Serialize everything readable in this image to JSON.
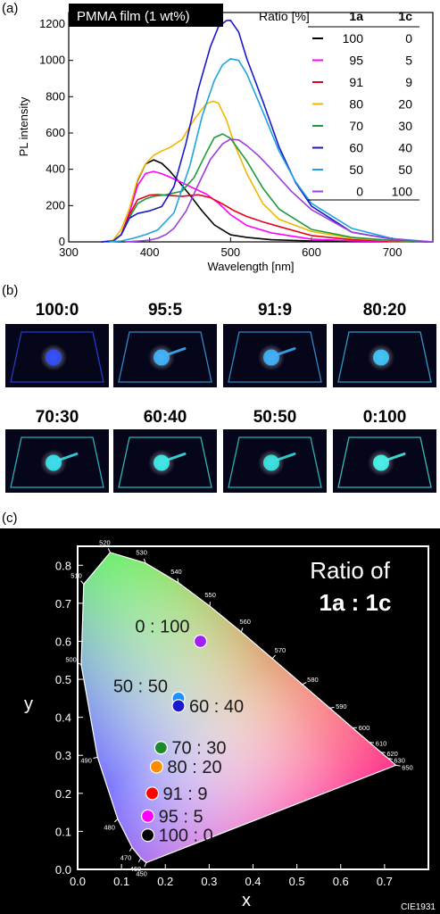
{
  "panels": {
    "a": "(a)",
    "b": "(b)",
    "c": "(c)"
  },
  "chart_data": [
    {
      "type": "line",
      "badge": "PMMA film (1 wt%)",
      "xlabel": "Wavelength [nm]",
      "ylabel": "PL intensity",
      "xlim": [
        300,
        750
      ],
      "ylim": [
        0,
        1250
      ],
      "xticks": [
        300,
        400,
        500,
        600,
        700
      ],
      "yticks": [
        0,
        200,
        400,
        600,
        800,
        1000,
        1200
      ],
      "legend": {
        "header": [
          "Ratio [%]",
          "1a",
          "1c"
        ],
        "placement": "top-right"
      },
      "series": [
        {
          "ratio_1a": "100",
          "ratio_1c": "0",
          "color": "#000000",
          "x": [
            340,
            355,
            365,
            375,
            385,
            395,
            405,
            415,
            425,
            435,
            450,
            465,
            480,
            500,
            520,
            550,
            600,
            650,
            700,
            750
          ],
          "y": [
            0,
            5,
            40,
            160,
            330,
            420,
            450,
            440,
            400,
            340,
            250,
            160,
            90,
            45,
            25,
            12,
            5,
            3,
            2,
            0
          ]
        },
        {
          "ratio_1a": "95",
          "ratio_1c": "5",
          "color": "#ff00ff",
          "x": [
            340,
            355,
            365,
            375,
            385,
            395,
            405,
            415,
            425,
            440,
            455,
            470,
            485,
            500,
            520,
            550,
            600,
            650,
            700,
            750
          ],
          "y": [
            0,
            5,
            40,
            150,
            300,
            375,
            395,
            385,
            360,
            320,
            285,
            260,
            220,
            160,
            95,
            45,
            15,
            6,
            2,
            0
          ]
        },
        {
          "ratio_1a": "91",
          "ratio_1c": "9",
          "color": "#e8001c",
          "x": [
            340,
            355,
            365,
            375,
            385,
            400,
            410,
            420,
            440,
            460,
            475,
            490,
            505,
            520,
            540,
            560,
            600,
            650,
            700,
            750
          ],
          "y": [
            0,
            5,
            40,
            140,
            230,
            265,
            270,
            260,
            245,
            250,
            240,
            215,
            180,
            145,
            105,
            75,
            35,
            12,
            4,
            0
          ]
        },
        {
          "ratio_1a": "80",
          "ratio_1c": "20",
          "color": "#f2b600",
          "x": [
            340,
            355,
            365,
            375,
            385,
            395,
            405,
            415,
            425,
            440,
            455,
            470,
            478,
            485,
            495,
            505,
            520,
            540,
            560,
            600,
            650,
            700,
            750
          ],
          "y": [
            0,
            10,
            60,
            180,
            350,
            440,
            480,
            495,
            510,
            560,
            680,
            770,
            780,
            760,
            660,
            530,
            380,
            220,
            130,
            55,
            20,
            7,
            0
          ]
        },
        {
          "ratio_1a": "70",
          "ratio_1c": "30",
          "color": "#1e9a3c",
          "x": [
            340,
            355,
            365,
            375,
            385,
            395,
            405,
            420,
            440,
            455,
            470,
            480,
            490,
            500,
            520,
            540,
            560,
            600,
            650,
            700,
            750
          ],
          "y": [
            0,
            5,
            40,
            140,
            220,
            240,
            245,
            250,
            275,
            360,
            500,
            580,
            590,
            560,
            440,
            300,
            190,
            75,
            25,
            8,
            0
          ]
        },
        {
          "ratio_1a": "60",
          "ratio_1c": "40",
          "color": "#1a1acc",
          "x": [
            340,
            355,
            365,
            375,
            385,
            400,
            415,
            430,
            445,
            460,
            475,
            485,
            495,
            500,
            510,
            520,
            540,
            560,
            580,
            600,
            650,
            700,
            750
          ],
          "y": [
            0,
            5,
            40,
            140,
            160,
            165,
            185,
            300,
            550,
            850,
            1080,
            1180,
            1210,
            1215,
            1160,
            1020,
            780,
            520,
            320,
            190,
            55,
            15,
            0
          ]
        },
        {
          "ratio_1a": "50",
          "ratio_1c": "50",
          "color": "#1fa3e0",
          "x": [
            350,
            365,
            380,
            395,
            410,
            430,
            450,
            465,
            480,
            490,
            500,
            510,
            520,
            540,
            560,
            580,
            600,
            650,
            700,
            750
          ],
          "y": [
            0,
            5,
            20,
            40,
            60,
            150,
            420,
            700,
            900,
            980,
            1005,
            990,
            920,
            720,
            510,
            340,
            210,
            65,
            18,
            0
          ]
        },
        {
          "ratio_1a": "0",
          "ratio_1c": "100",
          "color": "#9b3fd6",
          "x": [
            370,
            380,
            390,
            400,
            410,
            420,
            430,
            445,
            460,
            475,
            490,
            500,
            510,
            520,
            535,
            550,
            575,
            600,
            650,
            700,
            750
          ],
          "y": [
            0,
            3,
            6,
            10,
            20,
            40,
            80,
            180,
            320,
            450,
            530,
            560,
            565,
            540,
            480,
            400,
            270,
            170,
            55,
            15,
            0
          ]
        }
      ]
    },
    {
      "type": "scatter",
      "title": "Ratio of",
      "subtitle": "1a : 1c",
      "xlabel": "x",
      "ylabel": "y",
      "xlim": [
        0.0,
        0.8
      ],
      "ylim": [
        0.0,
        0.85
      ],
      "xticks": [
        0.0,
        0.1,
        0.2,
        0.3,
        0.4,
        0.5,
        0.6,
        0.7
      ],
      "yticks": [
        0.0,
        0.1,
        0.2,
        0.3,
        0.4,
        0.5,
        0.6,
        0.7,
        0.8
      ],
      "footer": "CIE1931",
      "points": [
        {
          "label": "0 : 100",
          "x": 0.28,
          "y": 0.6,
          "color": "#a020f0"
        },
        {
          "label": "50 : 50",
          "x": 0.23,
          "y": 0.45,
          "color": "#1e90ff"
        },
        {
          "label": "60 : 40",
          "x": 0.23,
          "y": 0.43,
          "color": "#1a1acc"
        },
        {
          "label": "70 : 30",
          "x": 0.19,
          "y": 0.32,
          "color": "#1e8a2c"
        },
        {
          "label": "80 : 20",
          "x": 0.18,
          "y": 0.27,
          "color": "#ff8c00"
        },
        {
          "label": "91 : 9",
          "x": 0.17,
          "y": 0.2,
          "color": "#ff0000"
        },
        {
          "label": "95 : 5",
          "x": 0.16,
          "y": 0.14,
          "color": "#ff00ff"
        },
        {
          "label": "100 : 0",
          "x": 0.16,
          "y": 0.09,
          "color": "#000000"
        }
      ],
      "locus": [
        {
          "nm": "450",
          "x": 0.1566,
          "y": 0.0177
        },
        {
          "nm": "460",
          "x": 0.144,
          "y": 0.0297
        },
        {
          "nm": "470",
          "x": 0.1241,
          "y": 0.0578
        },
        {
          "nm": "480",
          "x": 0.0913,
          "y": 0.1327
        },
        {
          "nm": "490",
          "x": 0.0454,
          "y": 0.295
        },
        {
          "nm": "500",
          "x": 0.0082,
          "y": 0.5384
        },
        {
          "nm": "510",
          "x": 0.0139,
          "y": 0.7502
        },
        {
          "nm": "520",
          "x": 0.0743,
          "y": 0.8338
        },
        {
          "nm": "530",
          "x": 0.1547,
          "y": 0.8059
        },
        {
          "nm": "540",
          "x": 0.2296,
          "y": 0.7543
        },
        {
          "nm": "550",
          "x": 0.3016,
          "y": 0.6923
        },
        {
          "nm": "560",
          "x": 0.3731,
          "y": 0.6245
        },
        {
          "nm": "570",
          "x": 0.4441,
          "y": 0.5547
        },
        {
          "nm": "580",
          "x": 0.5125,
          "y": 0.4866
        },
        {
          "nm": "590",
          "x": 0.5752,
          "y": 0.4242
        },
        {
          "nm": "600",
          "x": 0.627,
          "y": 0.3725
        },
        {
          "nm": "610",
          "x": 0.6658,
          "y": 0.334
        },
        {
          "nm": "620",
          "x": 0.6915,
          "y": 0.3083
        },
        {
          "nm": "630",
          "x": 0.7079,
          "y": 0.292
        },
        {
          "nm": "650",
          "x": 0.726,
          "y": 0.274
        }
      ]
    }
  ],
  "photos": [
    {
      "label": "100:0",
      "color": "#2f4cff"
    },
    {
      "label": "95:5",
      "color": "#3fb6ff"
    },
    {
      "label": "91:9",
      "color": "#3fb2ff"
    },
    {
      "label": "80:20",
      "color": "#3fc8ff"
    },
    {
      "label": "70:30",
      "color": "#39e6f2"
    },
    {
      "label": "60:40",
      "color": "#3ef0ee"
    },
    {
      "label": "50:50",
      "color": "#36eae6"
    },
    {
      "label": "0:100",
      "color": "#48f8ee"
    }
  ]
}
